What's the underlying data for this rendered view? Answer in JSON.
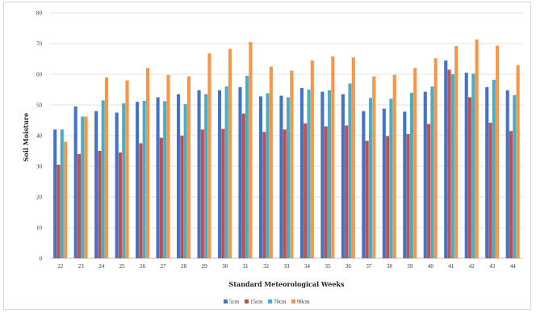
{
  "chart_data": {
    "type": "bar",
    "xlabel": "Standard Meteorological Weeks",
    "ylabel": "Soil Moisture",
    "ylim": [
      0,
      80
    ],
    "yticks": [
      0,
      10,
      20,
      30,
      40,
      50,
      60,
      70,
      80
    ],
    "grid": true,
    "legend_position": "bottom",
    "categories": [
      "22",
      "23",
      "24",
      "25",
      "26",
      "27",
      "28",
      "29",
      "30",
      "31",
      "32",
      "33",
      "34",
      "35",
      "36",
      "37",
      "38",
      "39",
      "40",
      "41",
      "42",
      "43",
      "44"
    ],
    "series": [
      {
        "name": "5cm",
        "color": "#4472c4",
        "values": [
          42,
          49.5,
          48,
          47.5,
          51,
          52.5,
          53.5,
          54.8,
          54.8,
          55.8,
          52.8,
          53,
          55.5,
          54.3,
          53.5,
          48,
          48.8,
          47.8,
          54.3,
          64.5,
          60.5,
          55.8,
          54.8
        ]
      },
      {
        "name": "15cm",
        "color": "#c0504d",
        "values": [
          30.5,
          34,
          35,
          34.5,
          37.5,
          39.3,
          40,
          42,
          42.2,
          47.2,
          41.2,
          42,
          44,
          43,
          43.3,
          38.3,
          39.8,
          40.5,
          43.8,
          61.5,
          52.5,
          44.2,
          41.5
        ]
      },
      {
        "name": "70cm",
        "color": "#4bacc6",
        "values": [
          42,
          46.2,
          51.5,
          50.5,
          51.3,
          51.2,
          50.3,
          53.5,
          56,
          59.5,
          53.8,
          52.5,
          55,
          54.8,
          57,
          52.3,
          52,
          54,
          56,
          60,
          60.2,
          58.2,
          53.2
        ]
      },
      {
        "name": "90cm",
        "color": "#f79646",
        "values": [
          38,
          46.2,
          59,
          58,
          62,
          59.8,
          59.3,
          66.8,
          68.3,
          70.5,
          62.5,
          61.2,
          64.5,
          65.8,
          65.5,
          59.3,
          59.8,
          62,
          65.2,
          69.2,
          71.3,
          69.3,
          63
        ]
      }
    ]
  }
}
